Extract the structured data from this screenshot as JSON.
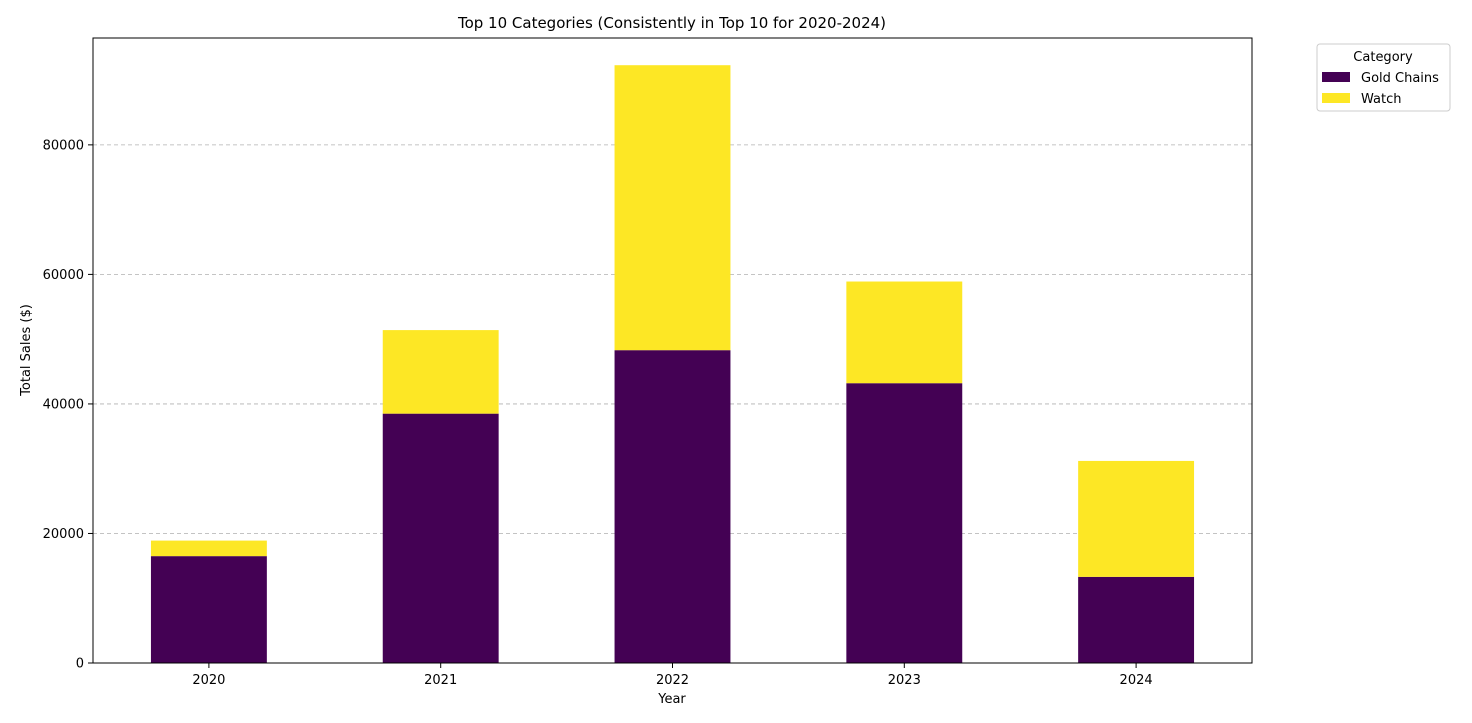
{
  "chart_data": {
    "type": "bar",
    "stacked": true,
    "title": "Top 10 Categories (Consistently in Top 10 for 2020-2024)",
    "xlabel": "Year",
    "ylabel": "Total Sales ($)",
    "categories": [
      "2020",
      "2021",
      "2022",
      "2023",
      "2024"
    ],
    "series": [
      {
        "name": "Gold Chains",
        "color": "#440154",
        "values": [
          16500,
          38500,
          48300,
          43200,
          13300
        ]
      },
      {
        "name": "Watch",
        "color": "#fde725",
        "values": [
          2400,
          12900,
          44000,
          15700,
          17900
        ]
      }
    ],
    "ylim": [
      0,
      96500
    ],
    "yticks": [
      0,
      20000,
      40000,
      60000,
      80000
    ],
    "ytick_labels": [
      "0",
      "20000",
      "40000",
      "60000",
      "80000"
    ],
    "grid": {
      "y": true,
      "style": "dashed"
    },
    "legend": {
      "title": "Category",
      "placement": "outside-top-right"
    }
  }
}
